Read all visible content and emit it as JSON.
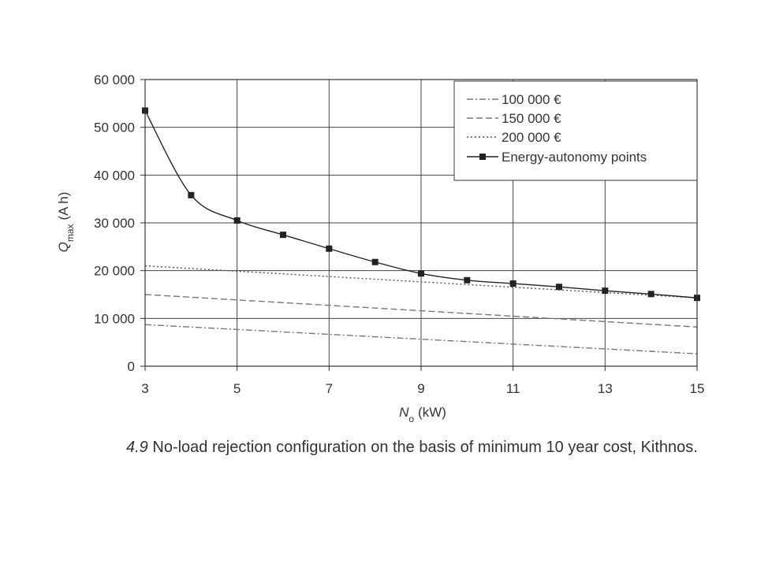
{
  "caption": {
    "number": "4.9",
    "text": "No-load rejection configuration on the basis of minimum 10 year cost, Kithnos."
  },
  "chart_data": {
    "type": "line",
    "ylabel_main": "Q",
    "ylabel_sub": "max",
    "ylabel_unit": "(A h)",
    "xlabel_main": "N",
    "xlabel_sub": "o",
    "xlabel_unit": "(kW)",
    "xlim": [
      3,
      15
    ],
    "ylim": [
      0,
      60000
    ],
    "x_ticks": [
      3,
      5,
      7,
      9,
      11,
      13,
      15
    ],
    "x_tick_labels": [
      "3",
      "5",
      "7",
      "9",
      "11",
      "13",
      "15"
    ],
    "y_ticks": [
      0,
      10000,
      20000,
      30000,
      40000,
      50000,
      60000
    ],
    "y_tick_labels": [
      "0",
      "10 000",
      "20 000",
      "30 000",
      "40 000",
      "50 000",
      "60 000"
    ],
    "grid": true,
    "legend_position": "top-right",
    "series": [
      {
        "name": "100 000 €",
        "style": "dashdot",
        "color": "#777777",
        "x": [
          3,
          15
        ],
        "y": [
          8700,
          2600
        ]
      },
      {
        "name": "150 000 €",
        "style": "dashed",
        "color": "#777777",
        "x": [
          3,
          15
        ],
        "y": [
          15000,
          8200
        ]
      },
      {
        "name": "200 000 €",
        "style": "dotted",
        "color": "#555555",
        "x": [
          3,
          15
        ],
        "y": [
          21000,
          14300
        ]
      },
      {
        "name": "Energy-autonomy points",
        "style": "solid-square",
        "color": "#222222",
        "x": [
          3,
          4,
          5,
          6,
          7,
          8,
          9,
          10,
          11,
          12,
          13,
          14,
          15
        ],
        "y": [
          53500,
          35800,
          30500,
          27500,
          24600,
          21800,
          19400,
          18000,
          17300,
          16600,
          15800,
          15100,
          14300
        ]
      }
    ]
  }
}
